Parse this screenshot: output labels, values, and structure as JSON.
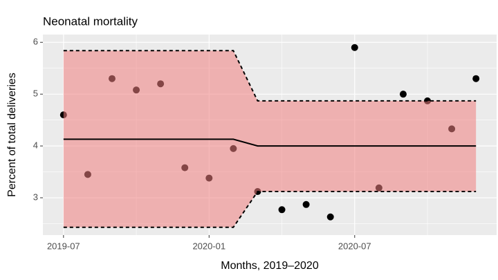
{
  "chart_data": {
    "type": "control",
    "title": "Neonatal mortality",
    "x_label": "Months, 2019–2020",
    "y_label": "Percent of total deliveries",
    "x": [
      "2019-07",
      "2019-08",
      "2019-09",
      "2019-10",
      "2019-11",
      "2019-12",
      "2020-01",
      "2020-02",
      "2020-03",
      "2020-04",
      "2020-05",
      "2020-06",
      "2020-07",
      "2020-08",
      "2020-09",
      "2020-10",
      "2020-11",
      "2020-12"
    ],
    "series": [
      {
        "style": "points",
        "color": "#000000",
        "values": [
          4.6,
          3.45,
          5.3,
          5.08,
          5.2,
          3.58,
          3.38,
          3.95,
          3.12,
          2.77,
          2.87,
          2.63,
          5.9,
          3.19,
          5.0,
          4.87,
          4.33,
          5.3
        ]
      },
      {
        "style": "solid",
        "color": "#000000",
        "values": [
          4.13,
          4.13,
          4.13,
          4.13,
          4.13,
          4.13,
          4.13,
          4.13,
          4.0,
          4.0,
          4.0,
          4.0,
          4.0,
          4.0,
          4.0,
          4.0,
          4.0,
          4.0
        ]
      },
      {
        "style": "dashed",
        "role": "upper",
        "color": "#000000",
        "values": [
          5.84,
          5.84,
          5.84,
          5.84,
          5.84,
          5.84,
          5.84,
          5.84,
          4.87,
          4.87,
          4.87,
          4.87,
          4.87,
          4.87,
          4.87,
          4.87,
          4.87,
          4.87
        ]
      },
      {
        "style": "dashed",
        "role": "lower",
        "color": "#000000",
        "values": [
          2.43,
          2.43,
          2.43,
          2.43,
          2.43,
          2.43,
          2.43,
          2.43,
          3.12,
          3.12,
          3.12,
          3.12,
          3.12,
          3.12,
          3.12,
          3.12,
          3.12,
          3.12
        ]
      }
    ],
    "band_color": "#f08080",
    "band_opacity": 0.55,
    "xlim": [
      "2019-07",
      "2020-12"
    ],
    "xticks": [
      "2019-07",
      "2020-01",
      "2020-07"
    ],
    "x_minor_ticks": [
      "2019-10",
      "2020-04",
      "2020-10"
    ],
    "ylim": [
      2.28,
      6.15
    ],
    "yticks": [
      3,
      4,
      5,
      6
    ],
    "y_minor_ticks": [
      2.5,
      3.5,
      4.5,
      5.5
    ],
    "grid": true
  }
}
